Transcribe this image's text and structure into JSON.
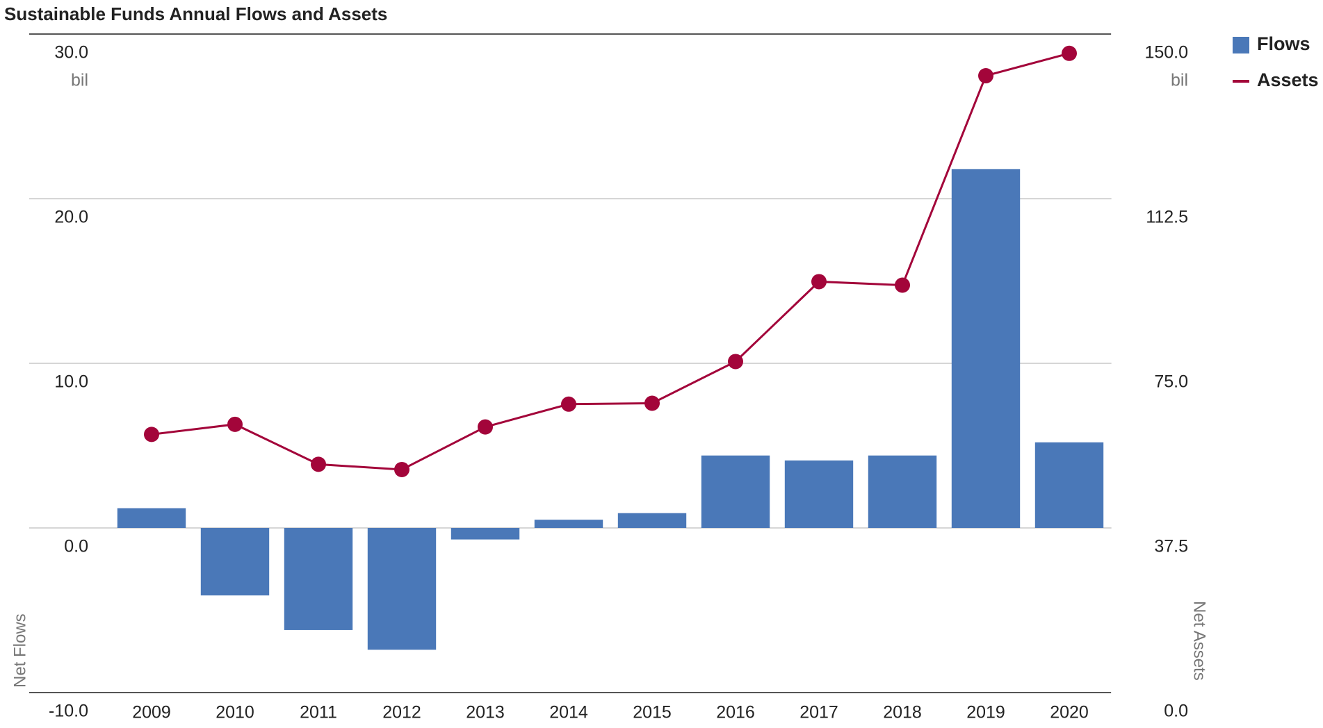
{
  "chart_data": {
    "type": "bar_line",
    "title": "Sustainable Funds Annual Flows and Assets",
    "y_label": "Net Flows",
    "y2_label": "Net Assets",
    "y_unit": "bil",
    "y2_unit": "bil",
    "categories": [
      "2009",
      "2010",
      "2011",
      "2012",
      "2013",
      "2014",
      "2015",
      "2016",
      "2017",
      "2018",
      "2019",
      "2020"
    ],
    "series": [
      {
        "name": "Flows",
        "type": "bar",
        "color": "#4a78b8",
        "values": [
          1.2,
          -4.1,
          -6.2,
          -7.4,
          -0.7,
          0.5,
          0.9,
          4.4,
          4.1,
          4.4,
          21.8,
          5.2
        ]
      },
      {
        "name": "Assets",
        "type": "line",
        "axis": "y2",
        "color": "#a3053a",
        "values": [
          58.8,
          61.1,
          52.0,
          50.8,
          60.5,
          65.7,
          65.9,
          75.4,
          93.6,
          92.8,
          140.5,
          145.6
        ]
      }
    ],
    "ylim": [
      -10,
      30
    ],
    "yticks": [
      {
        "value": -10,
        "label": "-10.0"
      },
      {
        "value": 0,
        "label": "0.0"
      },
      {
        "value": 10,
        "label": "10.0"
      },
      {
        "value": 20,
        "label": "20.0"
      },
      {
        "value": 30,
        "label": "30.0"
      }
    ],
    "y2lim": [
      0,
      150
    ],
    "y2ticks": [
      {
        "value": 0,
        "label": "0.0"
      },
      {
        "value": 37.5,
        "label": "37.5"
      },
      {
        "value": 75,
        "label": "75.0"
      },
      {
        "value": 112.5,
        "label": "112.5"
      },
      {
        "value": 150,
        "label": "150.0"
      }
    ],
    "grid": true,
    "legend": "top-right"
  }
}
